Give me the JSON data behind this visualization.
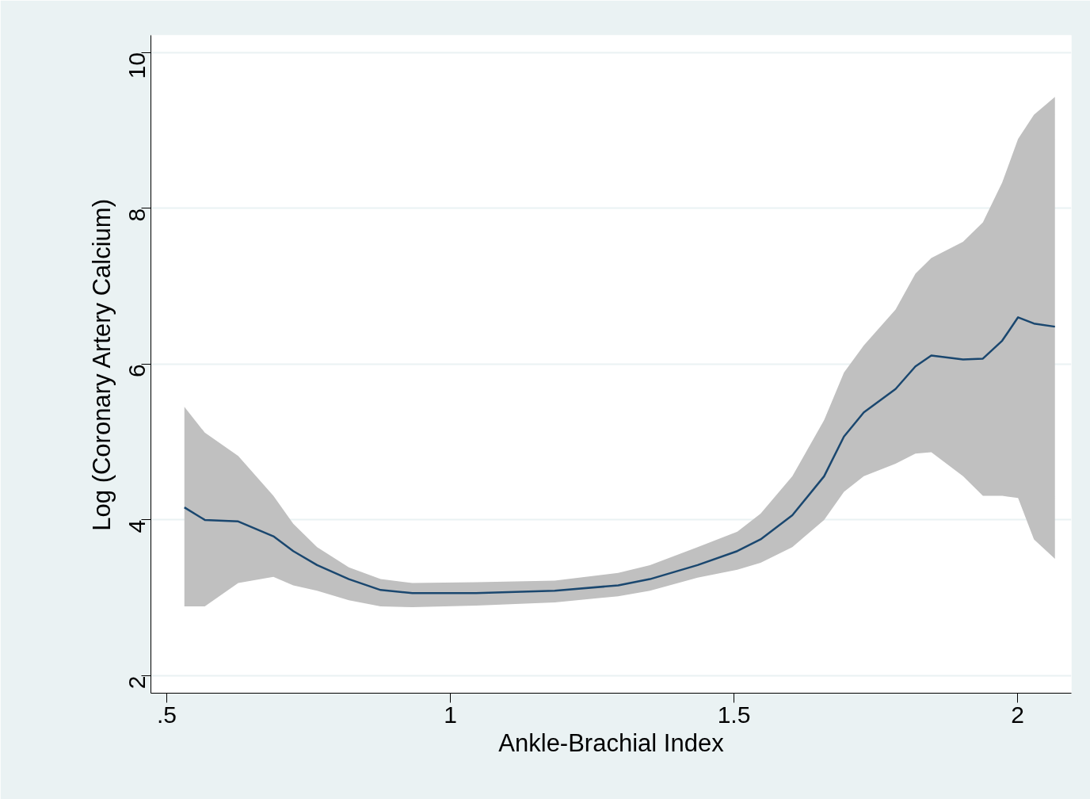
{
  "chart_data": {
    "type": "line",
    "xlabel": "Ankle-Brachial Index",
    "ylabel": "Log (Coronary Artery Calcium)",
    "xlim": [
      0.472,
      2.095
    ],
    "ylim": [
      1.776,
      10.22
    ],
    "xticks": [
      {
        "value": 0.5,
        "label": ".5"
      },
      1,
      1.5,
      2
    ],
    "yticks": [
      2,
      4,
      6,
      8,
      10
    ],
    "grid": "y",
    "series": [
      {
        "color": "#1a476f",
        "x": [
          0.531,
          0.567,
          0.626,
          0.688,
          0.723,
          0.765,
          0.821,
          0.877,
          0.933,
          1.045,
          1.184,
          1.296,
          1.352,
          1.436,
          1.506,
          1.547,
          1.603,
          1.659,
          1.694,
          1.729,
          1.785,
          1.82,
          1.848,
          1.904,
          1.939,
          1.973,
          2.001,
          2.029,
          2.066
        ],
        "values": [
          4.16,
          4.0,
          3.98,
          3.79,
          3.6,
          3.42,
          3.24,
          3.1,
          3.06,
          3.06,
          3.09,
          3.16,
          3.24,
          3.42,
          3.6,
          3.75,
          4.06,
          4.56,
          5.07,
          5.38,
          5.68,
          5.97,
          6.11,
          6.06,
          6.07,
          6.3,
          6.6,
          6.52,
          6.48
        ],
        "lower": [
          2.89,
          2.89,
          3.19,
          3.27,
          3.16,
          3.09,
          2.97,
          2.89,
          2.88,
          2.9,
          2.94,
          3.02,
          3.09,
          3.26,
          3.36,
          3.45,
          3.65,
          4.0,
          4.36,
          4.56,
          4.72,
          4.85,
          4.87,
          4.56,
          4.31,
          4.31,
          4.28,
          3.75,
          3.5
        ],
        "upper": [
          5.45,
          5.12,
          4.82,
          4.31,
          3.95,
          3.65,
          3.39,
          3.24,
          3.19,
          3.2,
          3.22,
          3.32,
          3.42,
          3.65,
          3.85,
          4.08,
          4.56,
          5.28,
          5.89,
          6.24,
          6.7,
          7.16,
          7.36,
          7.57,
          7.82,
          8.33,
          8.89,
          9.2,
          9.43
        ]
      }
    ]
  }
}
